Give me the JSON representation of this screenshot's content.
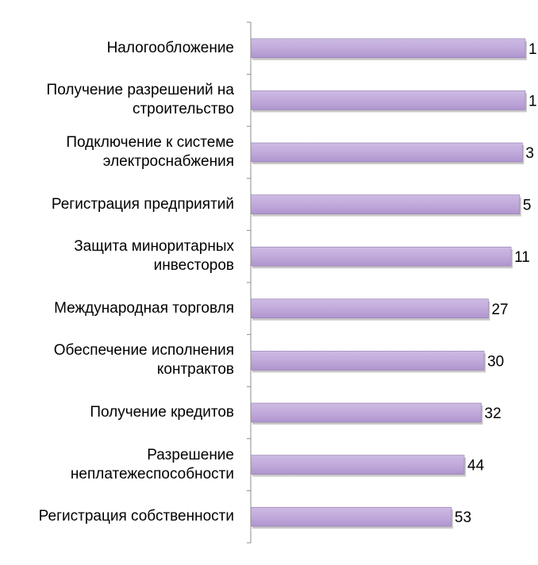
{
  "chart_data": {
    "type": "bar",
    "orientation": "horizontal",
    "categories": [
      "Налогообложение",
      "Получение разрешений на строительство",
      "Подключение к системе электроснабжения",
      "Регистрация предприятий",
      "Защита миноритарных инвесторов",
      "Международная торговля",
      "Обеспечение исполнения контрактов",
      "Получение кредитов",
      "Разрешение неплатежеспособности",
      "Регистрация собственности"
    ],
    "category_lines": [
      [
        "Налогообложение"
      ],
      [
        "Получение разрешений на",
        "строительство"
      ],
      [
        "Подключение к системе",
        "электроснабжения"
      ],
      [
        "Регистрация предприятий"
      ],
      [
        "Защита миноритарных",
        "инвесторов"
      ],
      [
        "Международная торговля"
      ],
      [
        "Обеспечение исполнения",
        "контрактов"
      ],
      [
        "Получение кредитов"
      ],
      [
        "Разрешение",
        "неплатежеспособности"
      ],
      [
        "Регистрация собственности"
      ]
    ],
    "values": [
      1,
      1,
      3,
      5,
      11,
      27,
      30,
      32,
      44,
      53
    ],
    "value_labels": [
      "1",
      "1",
      "3",
      "5",
      "11",
      "27",
      "30",
      "32",
      "44",
      "53"
    ],
    "xlim": [
      0,
      142
    ],
    "x_reversed": true,
    "grid": false,
    "bar_color": "#C1AADB"
  }
}
